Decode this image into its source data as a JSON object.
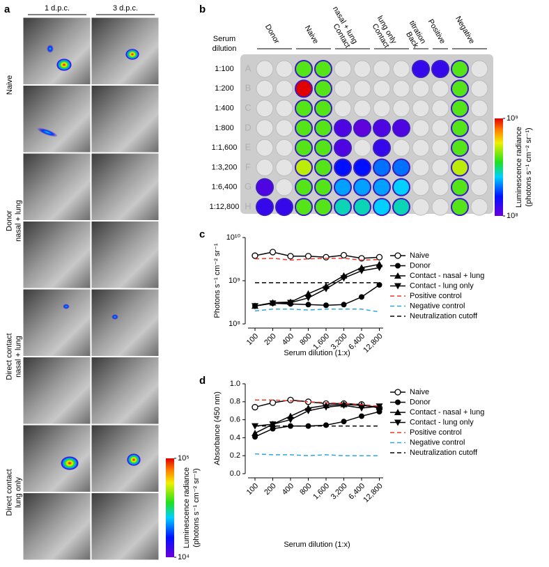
{
  "figure": {
    "panel_a": {
      "label": "a",
      "columns": [
        "1 d.p.c.",
        "3 d.p.c."
      ],
      "groups": [
        [
          "Naive"
        ],
        [
          "Donor",
          "nasal + lung"
        ],
        [
          "Direct contact",
          "nasal + lung"
        ],
        [
          "Direct contact",
          "lung only"
        ]
      ],
      "colorbar": {
        "title": [
          "Luminescence radiance",
          "(photons s⁻¹ cm⁻² sr⁻¹)"
        ],
        "range": [
          4,
          5
        ],
        "ticks": [
          {
            "value": 5,
            "label": "10⁵"
          },
          {
            "value": 4,
            "label": "10⁴"
          }
        ]
      }
    },
    "panel_b": {
      "label": "b",
      "row_header": [
        "Serum",
        "dilution"
      ],
      "dilutions": [
        "1:100",
        "1:200",
        "1:400",
        "1:800",
        "1:1,600",
        "1:3,200",
        "1:6,400",
        "1:12,800"
      ],
      "row_letters": [
        "A",
        "B",
        "C",
        "D",
        "E",
        "F",
        "G",
        "H"
      ],
      "column_groups": [
        {
          "name": [
            "Donor"
          ],
          "span": [
            0,
            1
          ]
        },
        {
          "name": [
            "Naive"
          ],
          "span": [
            2,
            3
          ]
        },
        {
          "name": [
            "Contact",
            "nasal + lung"
          ],
          "span": [
            4,
            5
          ]
        },
        {
          "name": [
            "Contact",
            "lung only"
          ],
          "span": [
            6,
            7
          ]
        },
        {
          "name": [
            "Back",
            "titration"
          ],
          "span": [
            8,
            8
          ]
        },
        {
          "name": [
            "Positive"
          ],
          "span": [
            9,
            9
          ]
        },
        {
          "name": [
            "Negative"
          ],
          "span": [
            10,
            11
          ]
        }
      ],
      "wells": [
        [
          null,
          null,
          8.6,
          8.6,
          null,
          null,
          null,
          null,
          8.1,
          8.1,
          8.6,
          null
        ],
        [
          null,
          null,
          9.0,
          8.6,
          null,
          null,
          null,
          null,
          null,
          null,
          8.6,
          null
        ],
        [
          null,
          null,
          8.6,
          8.6,
          null,
          null,
          null,
          null,
          null,
          null,
          8.6,
          null
        ],
        [
          null,
          null,
          8.6,
          8.6,
          8.05,
          8.02,
          8.05,
          8.05,
          null,
          null,
          8.6,
          null
        ],
        [
          null,
          null,
          8.6,
          8.6,
          8.05,
          null,
          8.1,
          null,
          null,
          null,
          8.6,
          null
        ],
        [
          null,
          null,
          8.7,
          8.6,
          8.2,
          8.2,
          8.3,
          8.3,
          null,
          null,
          8.7,
          null
        ],
        [
          8.05,
          null,
          8.6,
          8.6,
          8.35,
          8.35,
          8.35,
          8.4,
          null,
          null,
          8.6,
          null
        ],
        [
          8.1,
          8.1,
          8.6,
          8.6,
          8.45,
          8.45,
          8.4,
          8.45,
          null,
          null,
          8.6,
          null
        ]
      ],
      "colorbar": {
        "title": [
          "Luminescence radiance",
          "(photons s⁻¹ cm⁻² sr⁻¹)"
        ],
        "range": [
          8,
          9
        ],
        "ticks": [
          {
            "value": 9,
            "label": "10⁹"
          },
          {
            "value": 8,
            "label": "10⁸"
          }
        ]
      }
    }
  },
  "chart_data": [
    {
      "type": "line",
      "panel_label": "c",
      "xlabel": "Serum dilution (1:x)",
      "ylabel": "Photons s⁻¹ cm⁻² sr⁻¹",
      "log_y": true,
      "ylim": [
        100000000,
        10000000000
      ],
      "yticks": [
        {
          "value": 100000000,
          "label": "10⁸"
        },
        {
          "value": 1000000000,
          "label": "10⁹"
        },
        {
          "value": 10000000000,
          "label": "10¹⁰"
        }
      ],
      "categories": [
        "100",
        "200",
        "400",
        "800",
        "1,600",
        "3,200",
        "6,400",
        "12,800"
      ],
      "legend": "right",
      "series": [
        {
          "name": "Naive",
          "color": "#000000",
          "marker": "open-circle",
          "dash": false,
          "values": [
            3800000000,
            4600000000,
            3700000000,
            3700000000,
            3500000000,
            3900000000,
            3300000000,
            3500000000
          ]
        },
        {
          "name": "Donor",
          "color": "#000000",
          "marker": "circle",
          "dash": false,
          "values": [
            260000000,
            300000000,
            290000000,
            280000000,
            270000000,
            280000000,
            420000000,
            800000000
          ]
        },
        {
          "name": "Contact - nasal + lung",
          "color": "#000000",
          "marker": "triangle-up",
          "dash": false,
          "values": [
            260000000,
            310000000,
            320000000,
            500000000,
            750000000,
            1300000000,
            2000000000,
            2400000000
          ]
        },
        {
          "name": "Contact - lung only",
          "color": "#000000",
          "marker": "triangle-down",
          "dash": false,
          "values": [
            260000000,
            300000000,
            310000000,
            400000000,
            650000000,
            1150000000,
            1700000000,
            2000000000
          ]
        },
        {
          "name": "Positive control",
          "color": "#e8392a",
          "marker": "none",
          "dash": true,
          "values": [
            3200000000,
            3300000000,
            3000000000,
            3200000000,
            3300000000,
            3300000000,
            3000000000,
            3100000000
          ]
        },
        {
          "name": "Negative control",
          "color": "#29a8e0",
          "marker": "none",
          "dash": true,
          "values": [
            200000000,
            220000000,
            220000000,
            210000000,
            220000000,
            220000000,
            220000000,
            190000000
          ]
        },
        {
          "name": "Neutralization cutoff",
          "color": "#000000",
          "marker": "none",
          "dash": true,
          "values": [
            900000000,
            900000000,
            900000000,
            900000000,
            900000000,
            900000000,
            900000000,
            900000000
          ]
        }
      ]
    },
    {
      "type": "line",
      "panel_label": "d",
      "xlabel": "Serum dilution (1:x)",
      "ylabel": "Absorbance (450 nm)",
      "log_y": false,
      "ylim": [
        0,
        1
      ],
      "yticks": [
        {
          "value": 0,
          "label": "0.0"
        },
        0.2,
        0.4,
        0.6,
        0.8,
        {
          "value": 1,
          "label": "1.0"
        }
      ],
      "categories": [
        "100",
        "200",
        "400",
        "800",
        "1,600",
        "3,200",
        "6,400",
        "12,800"
      ],
      "legend": "right",
      "series": [
        {
          "name": "Naive",
          "color": "#000000",
          "marker": "open-circle",
          "dash": false,
          "values": [
            0.74,
            0.79,
            0.82,
            0.8,
            0.78,
            0.78,
            0.77,
            0.73
          ]
        },
        {
          "name": "Donor",
          "color": "#000000",
          "marker": "circle",
          "dash": false,
          "values": [
            0.41,
            0.5,
            0.53,
            0.53,
            0.54,
            0.58,
            0.64,
            0.69
          ]
        },
        {
          "name": "Contact - nasal + lung",
          "color": "#000000",
          "marker": "triangle-up",
          "dash": false,
          "values": [
            0.45,
            0.55,
            0.64,
            0.73,
            0.76,
            0.77,
            0.76,
            0.74
          ]
        },
        {
          "name": "Contact - lung only",
          "color": "#000000",
          "marker": "triangle-down",
          "dash": false,
          "values": [
            0.53,
            0.55,
            0.6,
            0.7,
            0.74,
            0.76,
            0.73,
            0.75
          ]
        },
        {
          "name": "Positive control",
          "color": "#e8392a",
          "marker": "none",
          "dash": true,
          "values": [
            0.82,
            0.82,
            0.81,
            0.8,
            0.79,
            0.78,
            0.77,
            0.75
          ]
        },
        {
          "name": "Negative control",
          "color": "#29a8e0",
          "marker": "none",
          "dash": true,
          "values": [
            0.22,
            0.21,
            0.21,
            0.2,
            0.21,
            0.2,
            0.2,
            0.2
          ]
        },
        {
          "name": "Neutralization cutoff",
          "color": "#000000",
          "marker": "none",
          "dash": true,
          "values": [
            0.53,
            0.53,
            0.53,
            0.53,
            0.53,
            0.53,
            0.53,
            0.53
          ]
        }
      ]
    }
  ]
}
